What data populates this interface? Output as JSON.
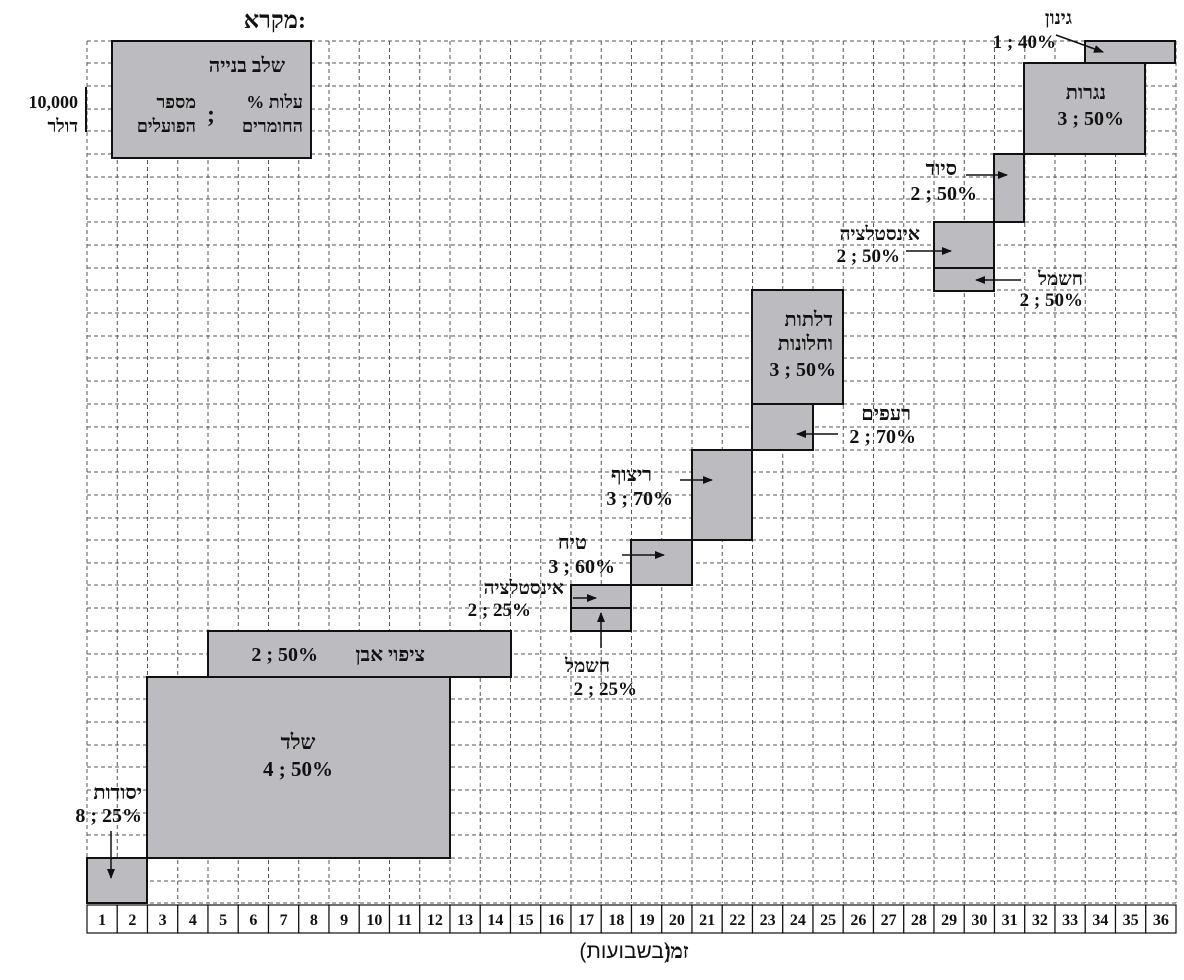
{
  "legend": {
    "title": "מקרא:",
    "stage_label": "שלב בנייה",
    "cost_label": "% עלות",
    "materials_label": "החומרים",
    "workers_label": "מספר",
    "workers_label2": "הפועלים",
    "separator": ";",
    "scale_value": "10,000",
    "scale_unit": "דולר"
  },
  "axis": {
    "title_bold": "זמן",
    "title_rest": "(בשבועות)",
    "ticks": [
      "1",
      "2",
      "3",
      "4",
      "5",
      "6",
      "7",
      "8",
      "9",
      "10",
      "11",
      "12",
      "13",
      "14",
      "15",
      "16",
      "17",
      "18",
      "19",
      "20",
      "21",
      "22",
      "23",
      "24",
      "25",
      "26",
      "27",
      "28",
      "29",
      "30",
      "31",
      "32",
      "33",
      "34",
      "35",
      "36"
    ]
  },
  "stages": [
    {
      "id": "foundations",
      "name": "יסודות",
      "value": "8 ; 25%",
      "start": 1,
      "end": 2,
      "height": 1
    },
    {
      "id": "shell",
      "name": "שלד",
      "value": "4 ; 50%",
      "start": 3,
      "end": 12,
      "height": 4
    },
    {
      "id": "stone-cladding",
      "name": "ציפוי אבן",
      "value": "2 ; 50%",
      "start": 5,
      "end": 14,
      "height": 0.5
    },
    {
      "id": "electric-1",
      "name": "חשמל",
      "value": "2 ; 25%",
      "start": 17,
      "end": 18,
      "height": 0.5
    },
    {
      "id": "installation-1",
      "name": "אינסטלציה",
      "value": "2 ; 25%",
      "start": 17,
      "end": 18,
      "height": 0.5
    },
    {
      "id": "plaster",
      "name": "טיח",
      "value": "3 ; 60%",
      "start": 19,
      "end": 20,
      "height": 1
    },
    {
      "id": "flooring",
      "name": "ריצוף",
      "value": "3 ; 70%",
      "start": 21,
      "end": 22,
      "height": 2
    },
    {
      "id": "tiles",
      "name": "רעפים",
      "value": "2 ; 70%",
      "start": 23,
      "end": 24,
      "height": 1
    },
    {
      "id": "doors-windows",
      "name": "דלתות",
      "name2": "וחלונות",
      "value": "3 ; 50%",
      "start": 23,
      "end": 25,
      "height": 2.5
    },
    {
      "id": "electric-2",
      "name": "חשמל",
      "value": "2 ; 50%",
      "start": 29,
      "end": 30,
      "height": 0.5
    },
    {
      "id": "installation-2",
      "name": "אינסטלציה",
      "value": "2 ; 50%",
      "start": 29,
      "end": 30,
      "height": 1
    },
    {
      "id": "painting",
      "name": "סיוד",
      "value": "2 ; 50%",
      "start": 31,
      "end": 31,
      "height": 2
    },
    {
      "id": "carpentry",
      "name": "נגרות",
      "value": "3 ; 50%",
      "start": 32,
      "end": 35,
      "height": 2
    },
    {
      "id": "gardening",
      "name": "גינון",
      "value": "1 ; 40%",
      "start": 34,
      "end": 36,
      "height": 0.5
    }
  ]
}
